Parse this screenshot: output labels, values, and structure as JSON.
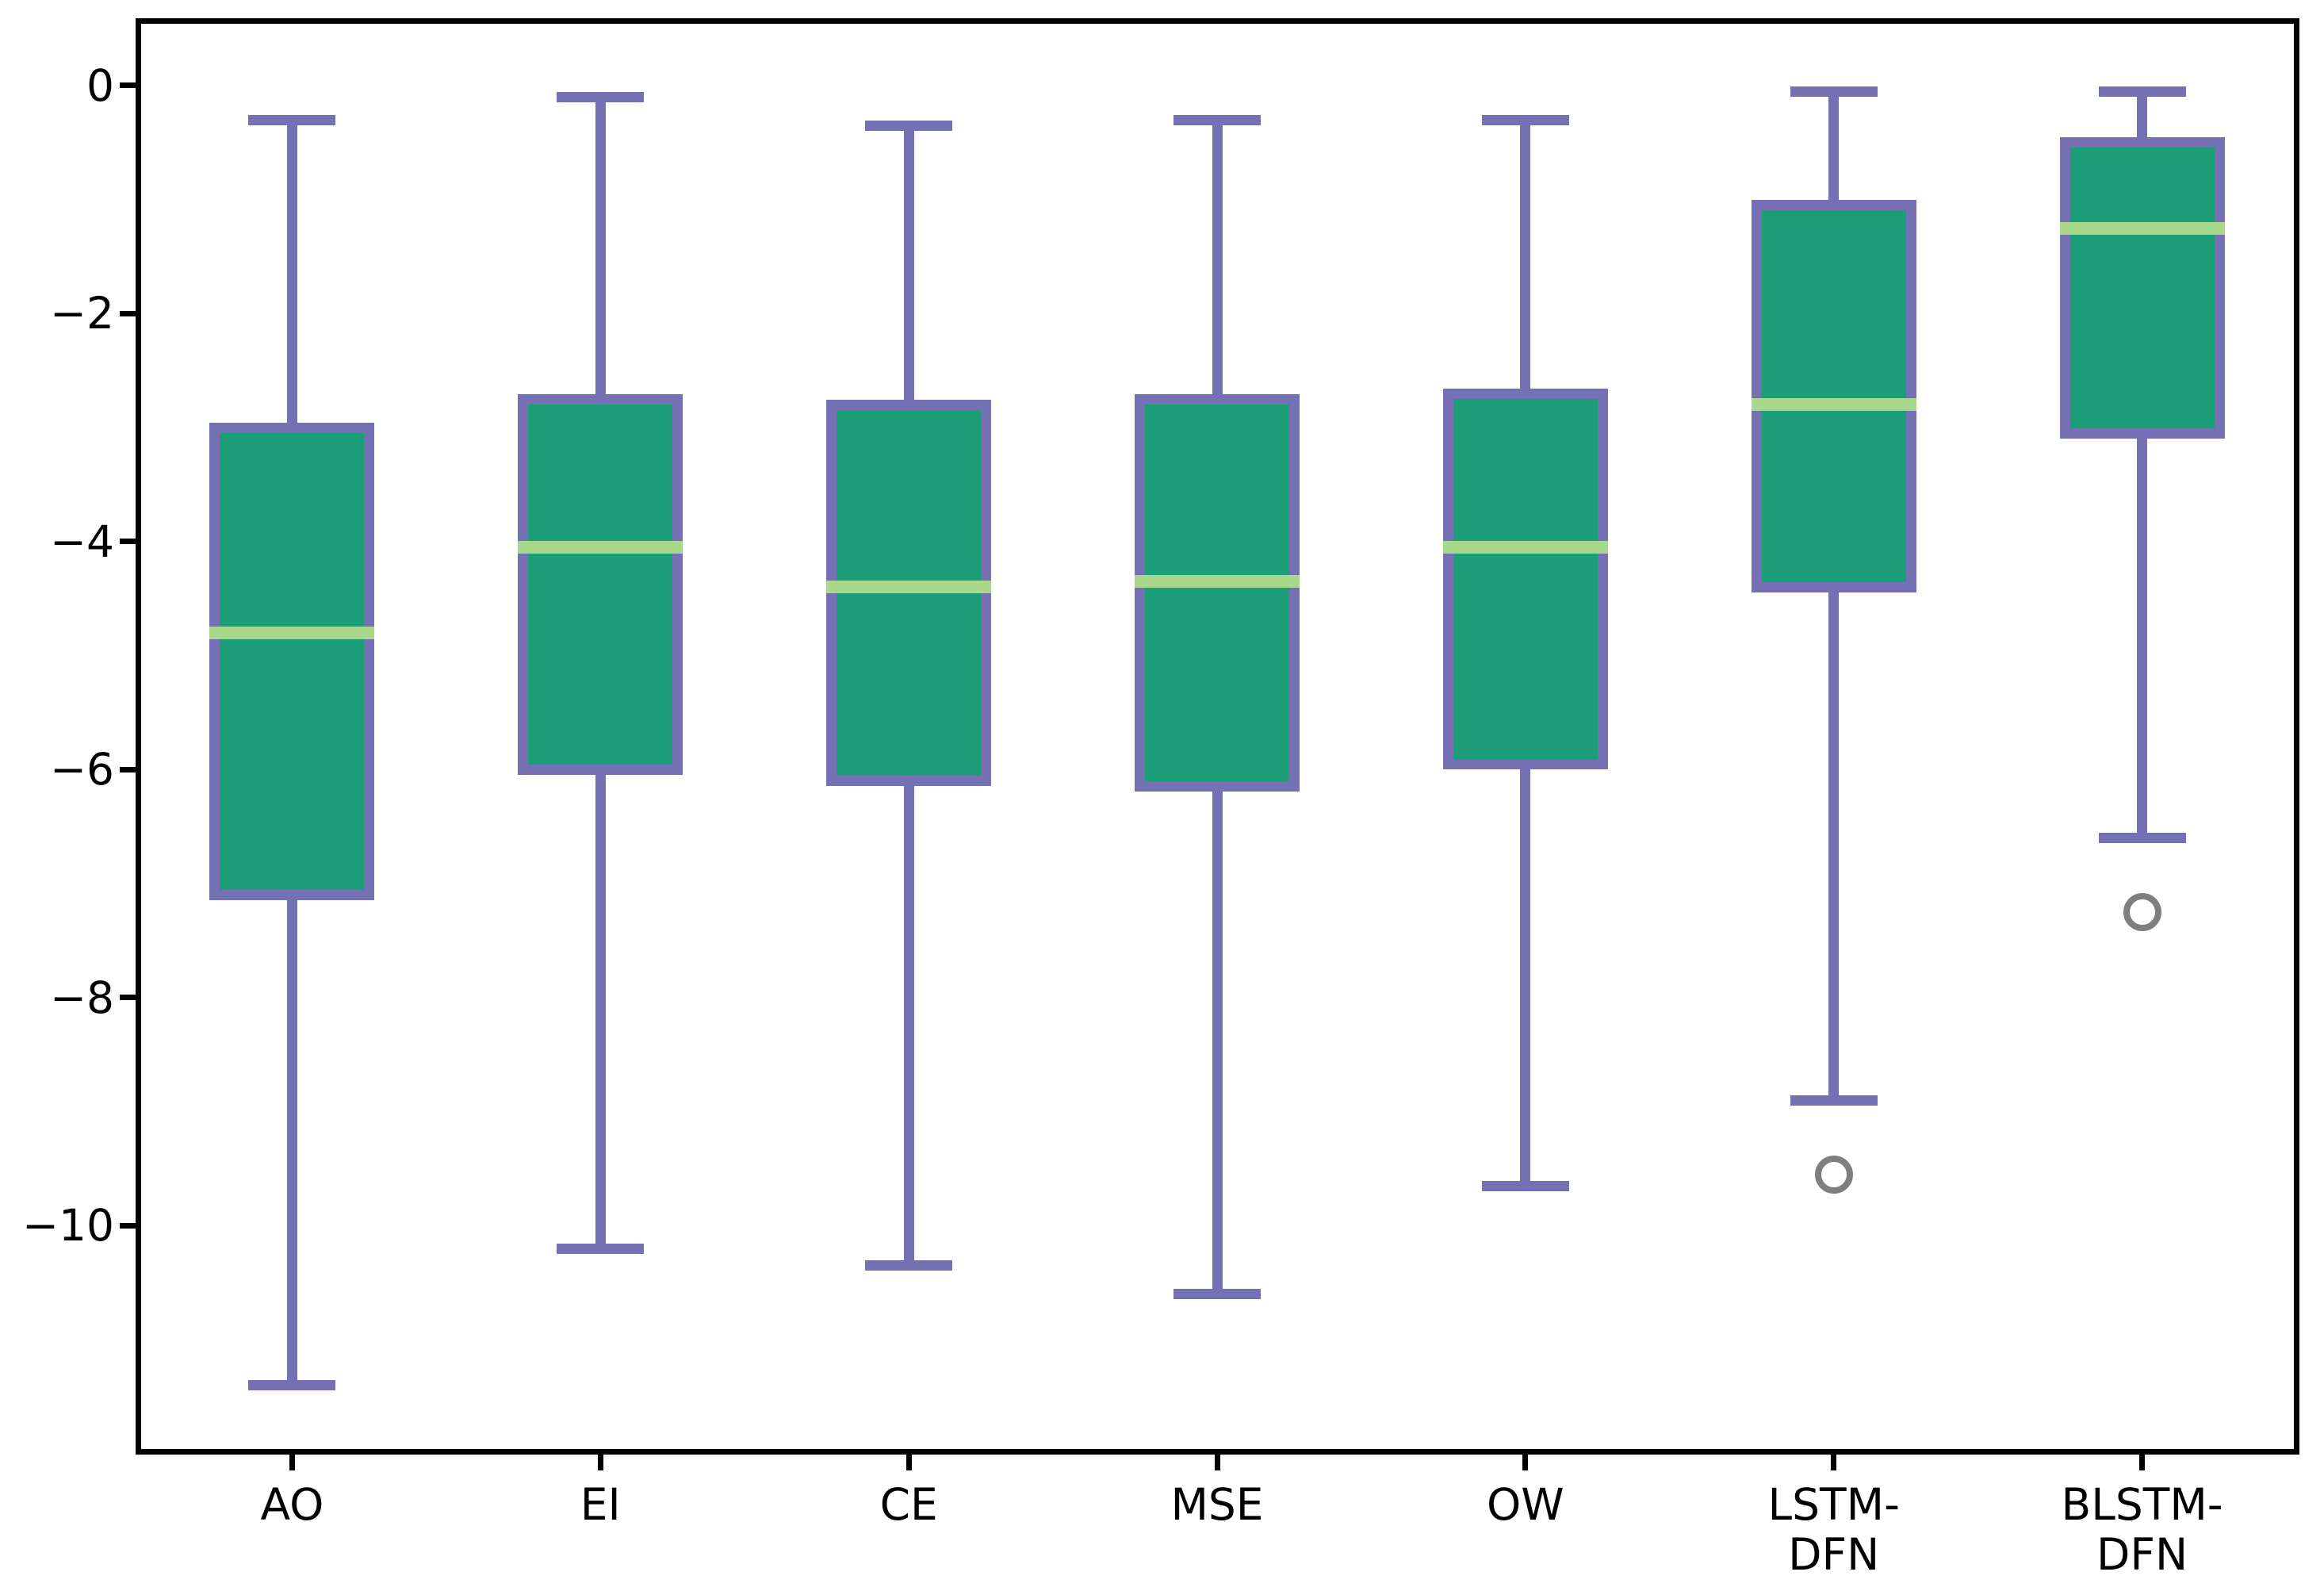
{
  "figure": {
    "background": "#ffffff"
  },
  "chart_data": {
    "type": "boxplot",
    "title": "",
    "xlabel": "",
    "ylabel": "",
    "grid": false,
    "legend": null,
    "orientation": "vertical",
    "categories": [
      "AO",
      "EI",
      "CE",
      "MSE",
      "OW",
      "LSTM-\nDFN",
      "BLSTM-\nDFN"
    ],
    "series": [
      {
        "label": "AO",
        "whislo": -11.4,
        "q1": -7.1,
        "med": -4.8,
        "q3": -3.0,
        "whishi": -0.3,
        "fliers": []
      },
      {
        "label": "EI",
        "whislo": -10.2,
        "q1": -6.0,
        "med": -4.05,
        "q3": -2.75,
        "whishi": -0.1,
        "fliers": []
      },
      {
        "label": "CE",
        "whislo": -10.35,
        "q1": -6.1,
        "med": -4.4,
        "q3": -2.8,
        "whishi": -0.35,
        "fliers": []
      },
      {
        "label": "MSE",
        "whislo": -10.6,
        "q1": -6.15,
        "med": -4.35,
        "q3": -2.75,
        "whishi": -0.3,
        "fliers": []
      },
      {
        "label": "OW",
        "whislo": -9.65,
        "q1": -5.95,
        "med": -4.05,
        "q3": -2.7,
        "whishi": -0.3,
        "fliers": []
      },
      {
        "label": "LSTM-\nDFN",
        "whislo": -8.9,
        "q1": -4.4,
        "med": -2.8,
        "q3": -1.05,
        "whishi": -0.05,
        "fliers": [
          -9.55
        ]
      },
      {
        "label": "BLSTM-\nDFN",
        "whislo": -6.6,
        "q1": -3.05,
        "med": -1.25,
        "q3": -0.5,
        "whishi": -0.05,
        "fliers": [
          -7.25
        ]
      }
    ],
    "yticks": [
      0,
      -2,
      -4,
      -6,
      -8,
      -10
    ],
    "ytick_labels": [
      "0",
      "−2",
      "−4",
      "−6",
      "−8",
      "−10"
    ],
    "ylim": [
      -11.98,
      0.57
    ],
    "colors": {
      "box_fill": "#1b9e77",
      "box_edge": "#7570b3",
      "whisker": "#7570b3",
      "median": "#a8d88c",
      "flier_edge": "#7f7f7f",
      "axis": "#000000"
    }
  }
}
